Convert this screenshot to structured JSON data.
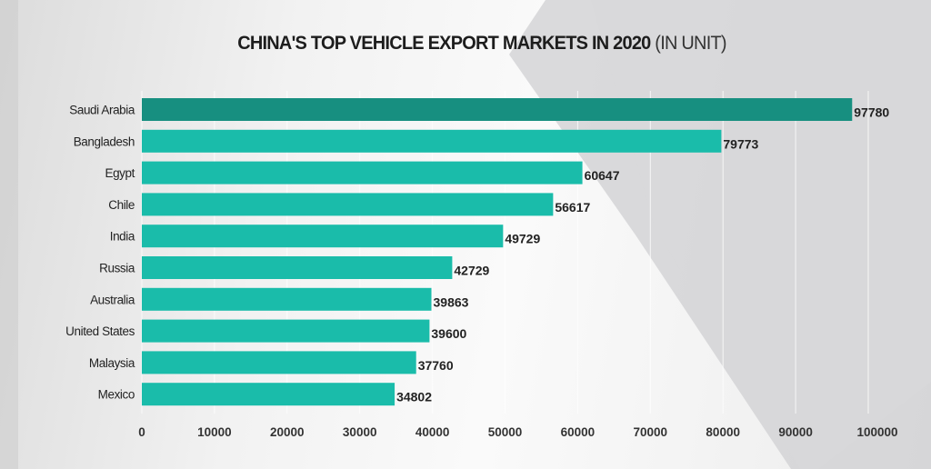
{
  "chart_data": {
    "type": "bar",
    "orientation": "horizontal",
    "title": "CHINA'S TOP VEHICLE EXPORT MARKETS IN 2020",
    "title_unit": "(IN UNIT)",
    "categories": [
      "Saudi Arabia",
      "Bangladesh",
      "Egypt",
      "Chile",
      "India",
      "Russia",
      "Australia",
      "United States",
      "Malaysia",
      "Mexico"
    ],
    "values": [
      97780,
      79773,
      60647,
      56617,
      49729,
      42729,
      39863,
      39600,
      37760,
      34802
    ],
    "xlim": [
      0,
      100000
    ],
    "xticks": [
      0,
      10000,
      20000,
      30000,
      40000,
      50000,
      60000,
      70000,
      80000,
      90000,
      100000
    ],
    "grid": "vertical",
    "colors": {
      "highlight": "#178f80",
      "bar": "#1abcaa"
    },
    "data_labels": true
  }
}
